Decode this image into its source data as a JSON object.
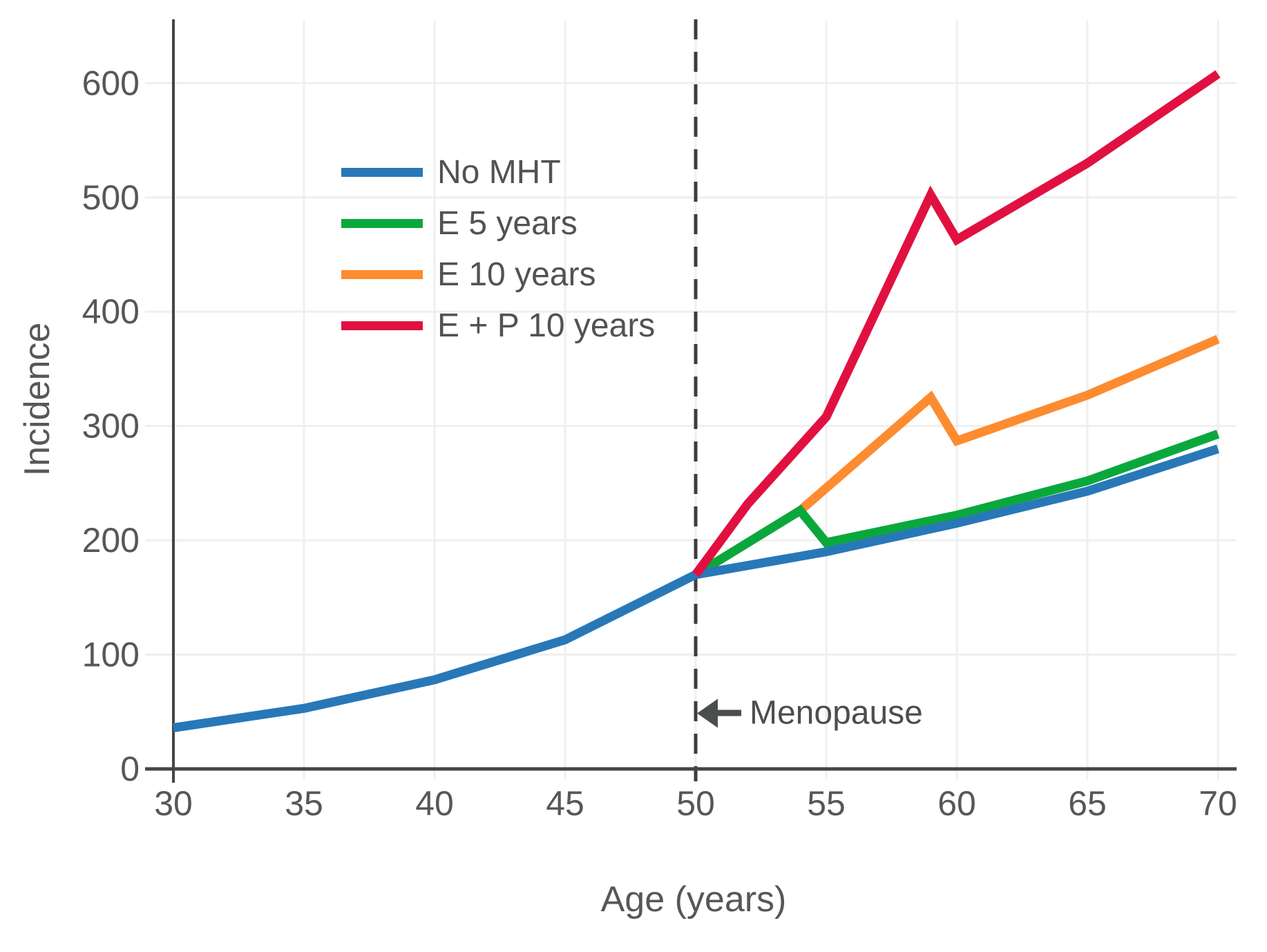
{
  "figure": {
    "colors": {
      "grid": "#efefef",
      "axis": "#454545",
      "tick_text": "#56575a",
      "annotation": "#4c4d4f",
      "dashed_line": "#3d3d3d"
    }
  },
  "chart_data": {
    "type": "line",
    "title": "",
    "xlabel": "Age (years)",
    "ylabel": "Incidence",
    "xlim": [
      30,
      70.7
    ],
    "ylim": [
      0,
      654
    ],
    "x_ticks": [
      30,
      35,
      40,
      45,
      50,
      55,
      60,
      65,
      70
    ],
    "y_ticks": [
      0,
      100,
      200,
      300,
      400,
      500,
      600
    ],
    "grid": true,
    "legend_position": "upper-left-inside",
    "reference_line": {
      "x": 50,
      "style": "dashed",
      "color": "#3d3d3d"
    },
    "annotations": [
      {
        "text": "Menopause",
        "arrow": "left",
        "x": 50,
        "y": 49
      }
    ],
    "series": [
      {
        "name": "No MHT",
        "color": "#2878b8",
        "points": [
          [
            30,
            36
          ],
          [
            35,
            53
          ],
          [
            40,
            78
          ],
          [
            45,
            113
          ],
          [
            50,
            170
          ],
          [
            55,
            190
          ],
          [
            60,
            215
          ],
          [
            65,
            243
          ],
          [
            70,
            280
          ]
        ]
      },
      {
        "name": "E 5 years",
        "color": "#0aa83c",
        "points": [
          [
            50,
            170
          ],
          [
            54,
            226
          ],
          [
            55,
            198
          ],
          [
            60,
            222
          ],
          [
            65,
            252
          ],
          [
            70,
            293
          ]
        ]
      },
      {
        "name": "E 10 years",
        "color": "#fd8b30",
        "points": [
          [
            50,
            170
          ],
          [
            54,
            226
          ],
          [
            59,
            325
          ],
          [
            60,
            287
          ],
          [
            65,
            327
          ],
          [
            70,
            376
          ]
        ]
      },
      {
        "name": "E + P 10 years",
        "color": "#e01141",
        "points": [
          [
            50,
            170
          ],
          [
            52,
            232
          ],
          [
            55,
            308
          ],
          [
            59,
            502
          ],
          [
            60,
            463
          ],
          [
            65,
            530
          ],
          [
            70,
            608
          ]
        ]
      }
    ]
  }
}
